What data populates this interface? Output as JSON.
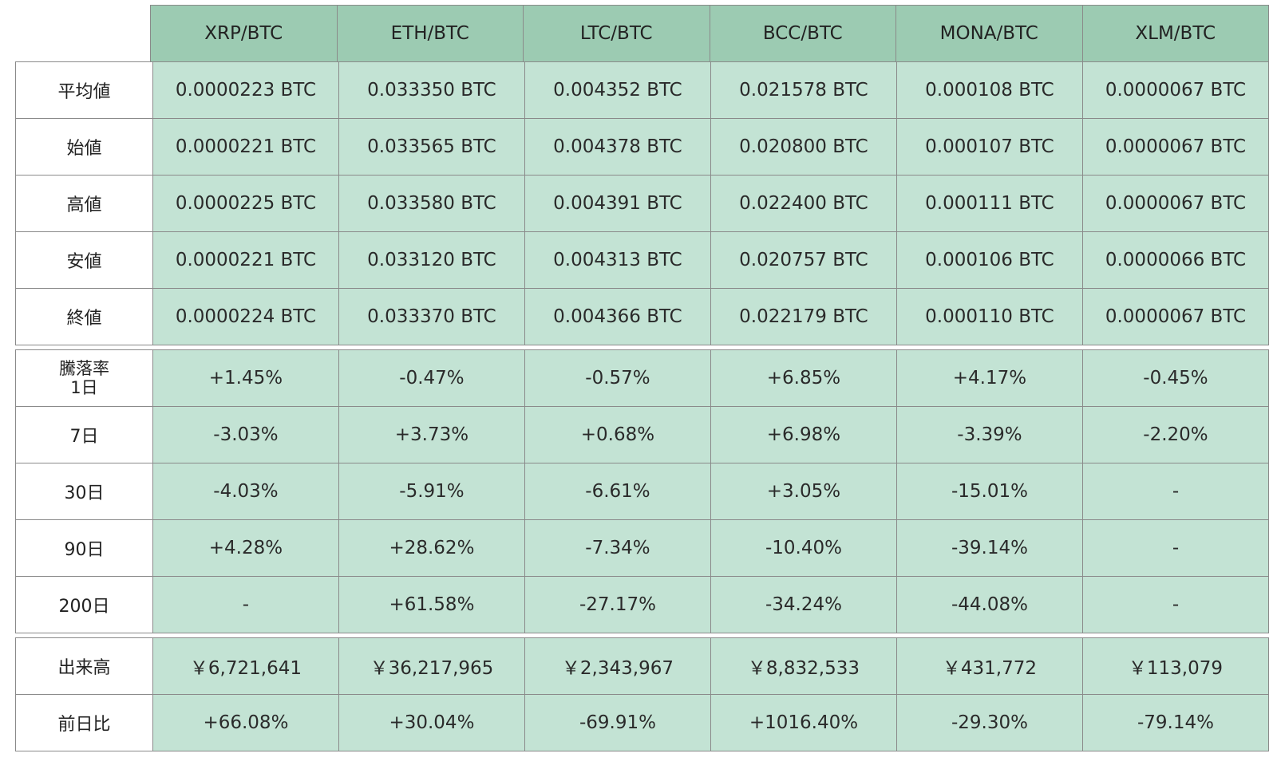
{
  "columns": [
    "XRP/BTC",
    "ETH/BTC",
    "LTC/BTC",
    "BCC/BTC",
    "MONA/BTC",
    "XLM/BTC"
  ],
  "prices": [
    {
      "label": "平均値",
      "values": [
        "0.0000223 BTC",
        "0.033350 BTC",
        "0.004352 BTC",
        "0.021578 BTC",
        "0.000108 BTC",
        "0.0000067 BTC"
      ]
    },
    {
      "label": "始値",
      "values": [
        "0.0000221 BTC",
        "0.033565 BTC",
        "0.004378 BTC",
        "0.020800 BTC",
        "0.000107 BTC",
        "0.0000067 BTC"
      ]
    },
    {
      "label": "高値",
      "values": [
        "0.0000225 BTC",
        "0.033580 BTC",
        "0.004391 BTC",
        "0.022400 BTC",
        "0.000111 BTC",
        "0.0000067 BTC"
      ]
    },
    {
      "label": "安値",
      "values": [
        "0.0000221 BTC",
        "0.033120 BTC",
        "0.004313 BTC",
        "0.020757 BTC",
        "0.000106 BTC",
        "0.0000066 BTC"
      ]
    },
    {
      "label": "終値",
      "values": [
        "0.0000224 BTC",
        "0.033370 BTC",
        "0.004366 BTC",
        "0.022179 BTC",
        "0.000110 BTC",
        "0.0000067 BTC"
      ]
    }
  ],
  "changes": [
    {
      "label_line1": "騰落率",
      "label_line2": "1日",
      "values": [
        "+1.45%",
        "-0.47%",
        "-0.57%",
        "+6.85%",
        "+4.17%",
        "-0.45%"
      ]
    },
    {
      "label": "7日",
      "values": [
        "-3.03%",
        "+3.73%",
        "+0.68%",
        "+6.98%",
        "-3.39%",
        "-2.20%"
      ]
    },
    {
      "label": "30日",
      "values": [
        "-4.03%",
        "-5.91%",
        "-6.61%",
        "+3.05%",
        "-15.01%",
        "-"
      ]
    },
    {
      "label": "90日",
      "values": [
        "+4.28%",
        "+28.62%",
        "-7.34%",
        "-10.40%",
        "-39.14%",
        "-"
      ]
    },
    {
      "label": "200日",
      "values": [
        "-",
        "+61.58%",
        "-27.17%",
        "-34.24%",
        "-44.08%",
        "-"
      ]
    }
  ],
  "volume": [
    {
      "label": "出来高",
      "values": [
        "￥6,721,641",
        "￥36,217,965",
        "￥2,343,967",
        "￥8,832,533",
        "￥431,772",
        "￥113,079"
      ]
    },
    {
      "label": "前日比",
      "values": [
        "+66.08%",
        "+30.04%",
        "-69.91%",
        "+1016.40%",
        "-29.30%",
        "-79.14%"
      ]
    }
  ],
  "colors": {
    "header_bg": "#9ccbb2",
    "cell_bg": "#c3e3d4",
    "label_bg": "#ffffff",
    "border": "#8a8a8a"
  }
}
